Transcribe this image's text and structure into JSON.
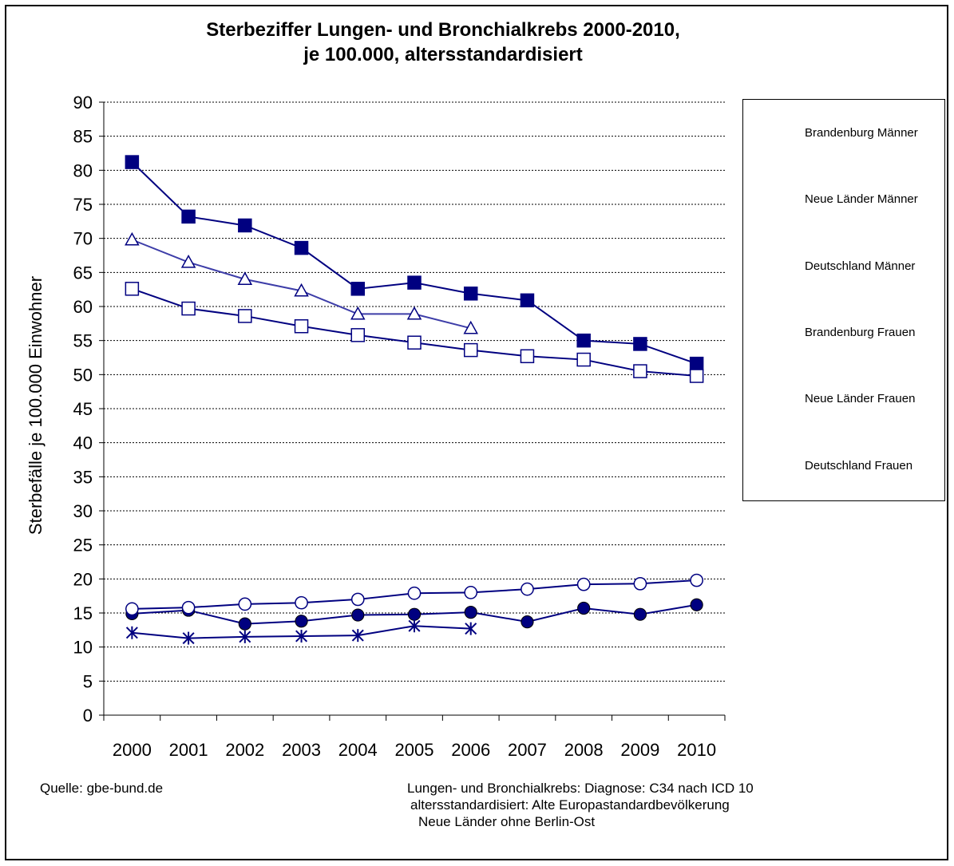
{
  "chart_data": {
    "type": "line",
    "title": [
      "Sterbeziffer Lungen- und Bronchialkrebs 2000-2010,",
      "je 100.000, altersstandardisiert"
    ],
    "ylabel": "Sterbefälle je 100.000 Einwohner",
    "xlabel": "",
    "categories": [
      "2000",
      "2001",
      "2002",
      "2003",
      "2004",
      "2005",
      "2006",
      "2007",
      "2008",
      "2009",
      "2010"
    ],
    "ylim": [
      0,
      90
    ],
    "yticks": [
      0,
      5,
      10,
      15,
      20,
      25,
      30,
      35,
      40,
      45,
      50,
      55,
      60,
      65,
      70,
      75,
      80,
      85,
      90
    ],
    "grid": "horizontal",
    "legend": "right",
    "line_color": "#000080",
    "series": [
      {
        "name": "Brandenburg Männer",
        "marker": "filled-square",
        "values": [
          81.2,
          73.2,
          71.9,
          68.6,
          62.6,
          63.5,
          61.9,
          60.9,
          55.0,
          54.5,
          51.6
        ]
      },
      {
        "name": "Neue Länder Männer",
        "marker": "open-triangle",
        "values": [
          69.8,
          66.5,
          64.0,
          62.3,
          58.9,
          58.9,
          56.8,
          null,
          null,
          null,
          null
        ]
      },
      {
        "name": "Deutschland Männer",
        "marker": "open-square",
        "values": [
          62.6,
          59.7,
          58.6,
          57.1,
          55.8,
          54.7,
          53.6,
          52.7,
          52.2,
          50.5,
          49.8
        ]
      },
      {
        "name": "Brandenburg Frauen",
        "marker": "filled-circle",
        "values": [
          14.9,
          15.4,
          13.4,
          13.8,
          14.7,
          14.8,
          15.1,
          13.7,
          15.7,
          14.8,
          16.2
        ]
      },
      {
        "name": "Neue Länder Frauen",
        "marker": "star",
        "values": [
          12.1,
          11.3,
          11.5,
          11.6,
          11.7,
          13.1,
          12.7,
          null,
          null,
          null,
          null
        ]
      },
      {
        "name": "Deutschland Frauen",
        "marker": "open-circle",
        "values": [
          15.6,
          15.8,
          16.3,
          16.5,
          17.0,
          17.9,
          18.0,
          18.5,
          19.2,
          19.3,
          19.8
        ]
      }
    ]
  },
  "footer": {
    "source": "Quelle: gbe-bund.de",
    "notes": [
      "Lungen-  und Bronchialkrebs: Diagnose: C34 nach ICD 10",
      "altersstandardisiert: Alte Europastandardbevölkerung",
      "Neue Länder ohne Berlin-Ost"
    ]
  }
}
